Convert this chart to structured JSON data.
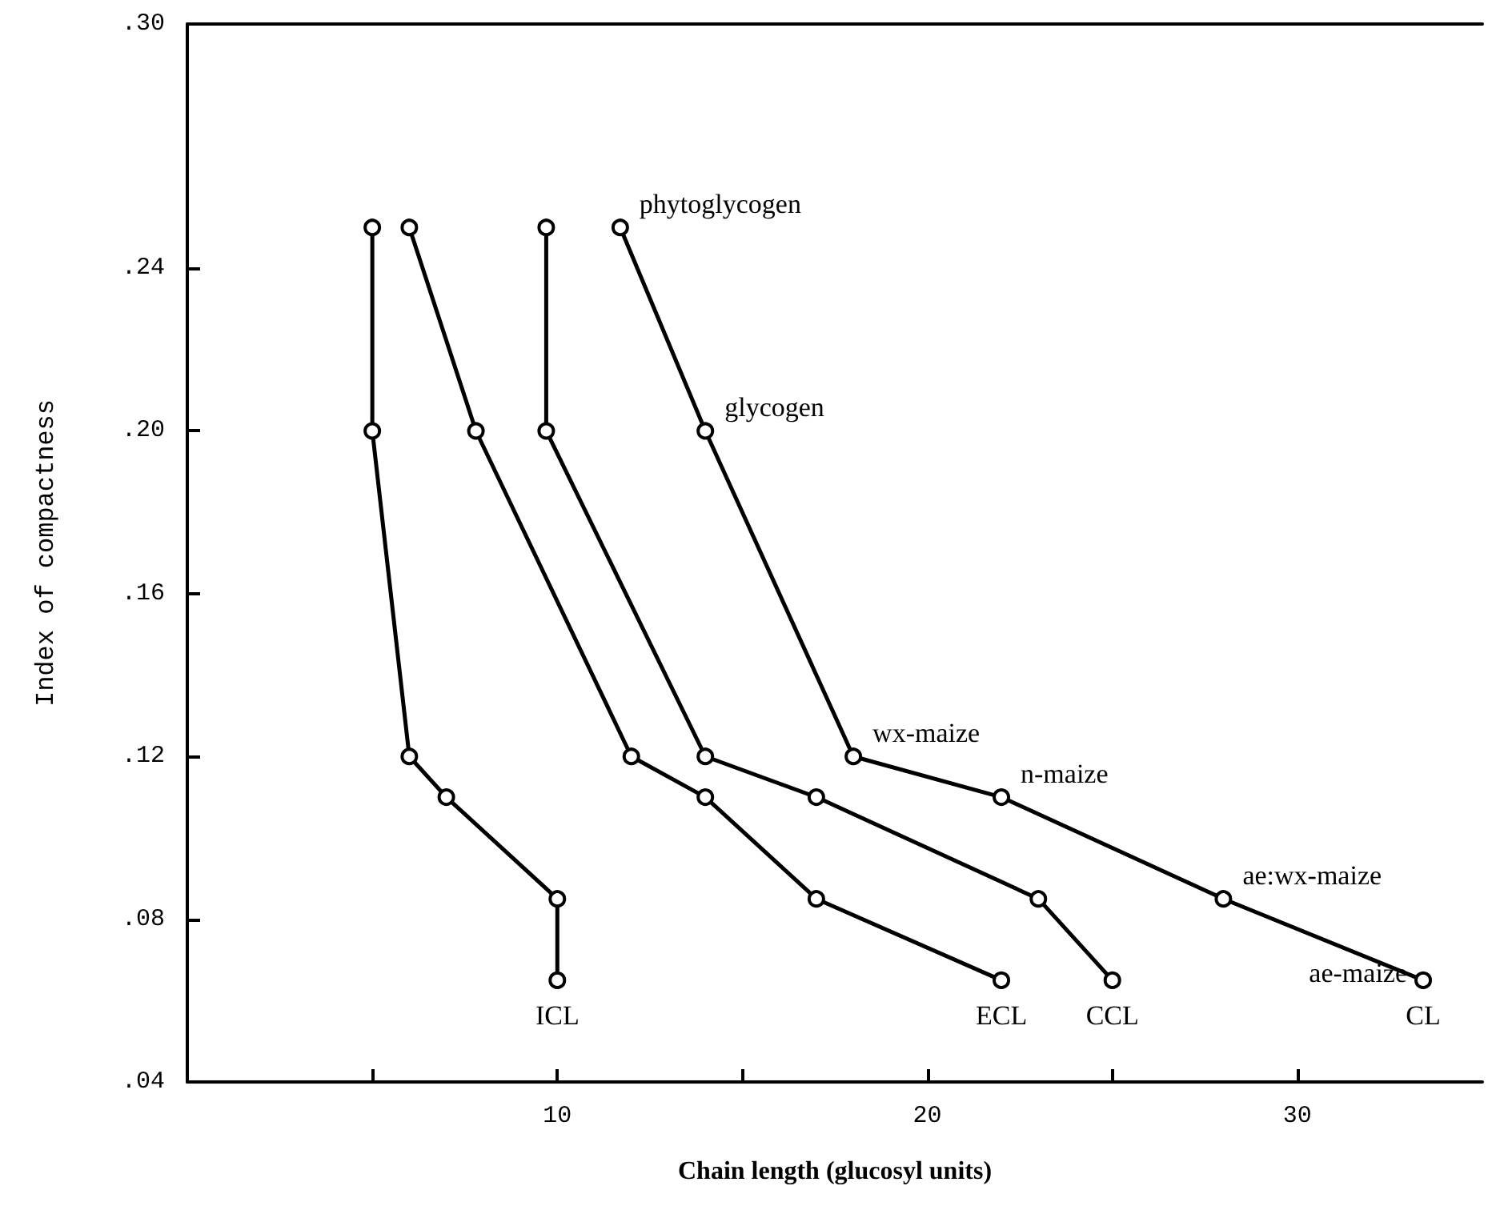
{
  "chart_data": {
    "type": "line",
    "xlabel": "Chain length (glucosyl units)",
    "ylabel": "Index of compactness",
    "xlim": [
      0,
      35
    ],
    "xticks": [
      {
        "value": 5,
        "label": null
      },
      10,
      {
        "value": 15,
        "label": null
      },
      20,
      {
        "value": 25,
        "label": null
      },
      30
    ],
    "ylim": [
      0.04,
      0.3
    ],
    "yticks": [
      {
        "value": 0.04,
        "label": ".04"
      },
      {
        "value": 0.08,
        "label": ".08"
      },
      {
        "value": 0.12,
        "label": ".12"
      },
      {
        "value": 0.16,
        "label": ".16"
      },
      {
        "value": 0.2,
        "label": ".20"
      },
      {
        "value": 0.24,
        "label": ".24"
      },
      {
        "value": 0.3,
        "label": ".30"
      }
    ],
    "grid": false,
    "legend": false,
    "marker": "circle",
    "line_style": "solid",
    "series": [
      {
        "name": "ICL",
        "color": "#000000",
        "x": [
          5,
          5,
          6,
          7,
          10,
          10
        ],
        "values": [
          0.25,
          0.2,
          0.12,
          0.11,
          0.085,
          0.065
        ]
      },
      {
        "name": "ECL",
        "color": "#000000",
        "x": [
          6,
          7.8,
          12,
          14,
          17,
          22
        ],
        "values": [
          0.25,
          0.2,
          0.12,
          0.11,
          0.085,
          0.065
        ]
      },
      {
        "name": "CCL",
        "color": "#000000",
        "x": [
          9.7,
          9.7,
          14,
          17,
          23,
          25
        ],
        "values": [
          0.25,
          0.2,
          0.12,
          0.11,
          0.085,
          0.065
        ]
      },
      {
        "name": "CL",
        "color": "#000000",
        "x": [
          11.7,
          14,
          18,
          22,
          28,
          33.4
        ],
        "values": [
          0.25,
          0.2,
          0.12,
          0.11,
          0.085,
          0.065
        ]
      }
    ],
    "annotations": [
      {
        "text": "phytoglycogen",
        "x": 11.7,
        "y": 0.25
      },
      {
        "text": "glycogen",
        "x": 14,
        "y": 0.2
      },
      {
        "text": "wx-maize",
        "x": 18,
        "y": 0.12
      },
      {
        "text": "n-maize",
        "x": 22,
        "y": 0.11
      },
      {
        "text": "ae:wx-maize",
        "x": 28,
        "y": 0.085
      },
      {
        "text": "ae-maize",
        "x": 33.4,
        "y": 0.065
      }
    ]
  }
}
